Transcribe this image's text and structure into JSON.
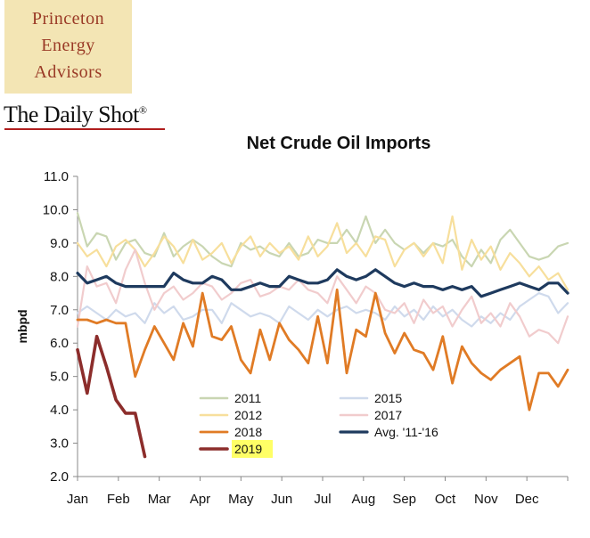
{
  "branding": {
    "logo_lines": [
      "Princeton",
      "Energy",
      "Advisors"
    ],
    "publication": "The Daily Shot",
    "publication_mark": "®"
  },
  "chart_data": {
    "type": "line",
    "title": "Net Crude Oil Imports",
    "xlabel": "",
    "ylabel": "mbpd",
    "x_tick_labels": [
      "Jan",
      "Feb",
      "Mar",
      "Apr",
      "May",
      "Jun",
      "Jul",
      "Aug",
      "Sep",
      "Oct",
      "Nov",
      "Dec"
    ],
    "x_unit": "week of year (1-52)",
    "xlim": [
      1,
      52
    ],
    "ylim": [
      2.0,
      11.0
    ],
    "y_ticks": [
      "2.0",
      "3.0",
      "4.0",
      "5.0",
      "6.0",
      "7.0",
      "8.0",
      "9.0",
      "10.0",
      "11.0"
    ],
    "grid": false,
    "legend_placement": "bottom-center",
    "series": [
      {
        "name": "2011",
        "color": "#c9d6b2",
        "width": 2.2,
        "values": [
          9.9,
          8.9,
          9.3,
          9.2,
          8.5,
          9.0,
          9.1,
          8.7,
          8.6,
          9.3,
          8.6,
          8.9,
          9.1,
          8.9,
          8.6,
          8.4,
          8.3,
          9.0,
          8.8,
          8.9,
          8.7,
          8.6,
          9.0,
          8.6,
          8.7,
          9.1,
          9.0,
          9.0,
          9.4,
          9.0,
          9.8,
          9.0,
          9.4,
          9.0,
          8.8,
          9.0,
          8.7,
          9.0,
          8.9,
          9.1,
          8.6,
          8.3,
          8.8,
          8.4,
          9.1,
          9.4,
          9.0,
          8.6,
          8.5,
          8.6,
          8.9,
          9.0
        ]
      },
      {
        "name": "2012",
        "color": "#f7df9c",
        "width": 2.2,
        "values": [
          9.0,
          8.6,
          8.8,
          8.3,
          8.9,
          9.1,
          8.8,
          8.3,
          8.7,
          9.2,
          8.9,
          8.4,
          9.1,
          8.5,
          8.7,
          9.0,
          8.4,
          8.9,
          9.2,
          8.6,
          9.0,
          8.7,
          8.9,
          8.5,
          9.2,
          8.6,
          8.9,
          9.6,
          8.7,
          9.0,
          8.6,
          9.2,
          9.1,
          8.3,
          8.8,
          9.0,
          8.6,
          9.0,
          8.4,
          9.8,
          8.2,
          9.1,
          8.5,
          8.9,
          8.2,
          8.7,
          8.4,
          8.0,
          8.3,
          7.9,
          8.1,
          7.6
        ]
      },
      {
        "name": "2015",
        "color": "#cfdaec",
        "width": 2.2,
        "values": [
          6.9,
          7.1,
          6.9,
          6.7,
          7.0,
          6.8,
          6.9,
          6.6,
          7.2,
          6.9,
          7.1,
          6.7,
          6.8,
          7.0,
          7.0,
          6.6,
          7.2,
          7.0,
          6.8,
          6.9,
          6.8,
          6.6,
          7.1,
          6.9,
          6.7,
          7.0,
          6.8,
          7.0,
          7.1,
          6.9,
          7.0,
          6.9,
          6.7,
          7.1,
          6.8,
          7.0,
          6.7,
          7.1,
          6.8,
          7.0,
          6.7,
          6.5,
          6.8,
          6.6,
          6.9,
          6.7,
          7.1,
          7.3,
          7.5,
          7.4,
          6.9,
          7.2
        ]
      },
      {
        "name": "2017",
        "color": "#f1cccd",
        "width": 2.2,
        "values": [
          6.5,
          8.3,
          7.7,
          7.8,
          7.2,
          8.2,
          8.8,
          7.8,
          7.0,
          7.5,
          7.7,
          7.3,
          7.5,
          7.8,
          7.7,
          7.3,
          7.5,
          7.8,
          7.9,
          7.4,
          7.5,
          7.7,
          7.6,
          7.9,
          7.6,
          7.5,
          7.2,
          8.0,
          7.6,
          7.2,
          7.7,
          7.5,
          7.0,
          6.9,
          7.2,
          6.6,
          7.3,
          6.9,
          7.1,
          6.5,
          7.0,
          7.4,
          6.6,
          6.9,
          6.5,
          7.2,
          6.8,
          6.2,
          6.4,
          6.3,
          6.0,
          6.8
        ]
      },
      {
        "name": "2018",
        "color": "#e07b25",
        "width": 2.8,
        "values": [
          6.7,
          6.7,
          6.6,
          6.7,
          6.6,
          6.6,
          5.0,
          5.8,
          6.5,
          6.0,
          5.5,
          6.6,
          5.9,
          7.5,
          6.2,
          6.1,
          6.5,
          5.5,
          5.1,
          6.4,
          5.5,
          6.6,
          6.1,
          5.8,
          5.4,
          6.8,
          5.4,
          7.6,
          5.1,
          6.4,
          6.2,
          7.5,
          6.3,
          5.7,
          6.3,
          5.8,
          5.7,
          5.2,
          6.2,
          4.8,
          5.9,
          5.4,
          5.1,
          4.9,
          5.2,
          5.4,
          5.6,
          4.0,
          5.1,
          5.1,
          4.7,
          5.2
        ]
      },
      {
        "name": "Avg. '11-'16",
        "color": "#1e3a5e",
        "width": 3.2,
        "values": [
          8.1,
          7.8,
          7.9,
          8.0,
          7.8,
          7.7,
          7.7,
          7.7,
          7.7,
          7.7,
          8.1,
          7.9,
          7.8,
          7.8,
          8.0,
          7.9,
          7.6,
          7.6,
          7.7,
          7.8,
          7.7,
          7.7,
          8.0,
          7.9,
          7.8,
          7.8,
          7.9,
          8.2,
          8.0,
          7.9,
          8.0,
          8.2,
          8.0,
          7.8,
          7.7,
          7.8,
          7.7,
          7.7,
          7.6,
          7.7,
          7.6,
          7.7,
          7.4,
          7.5,
          7.6,
          7.7,
          7.8,
          7.7,
          7.6,
          7.8,
          7.8,
          7.5
        ]
      },
      {
        "name": "2019",
        "color": "#8c2d2b",
        "width": 3.6,
        "values": [
          5.8,
          4.5,
          6.2,
          5.3,
          4.3,
          3.9,
          3.9,
          2.6
        ]
      }
    ],
    "legend": [
      {
        "name": "2011",
        "column": 0,
        "row": 0
      },
      {
        "name": "2015",
        "column": 1,
        "row": 0
      },
      {
        "name": "2012",
        "column": 0,
        "row": 1
      },
      {
        "name": "2017",
        "column": 1,
        "row": 1
      },
      {
        "name": "2018",
        "column": 0,
        "row": 2
      },
      {
        "name": "Avg. '11-'16",
        "column": 1,
        "row": 2
      },
      {
        "name": "2019",
        "column": 0,
        "row": 3,
        "highlight": "#ffff66"
      }
    ]
  }
}
